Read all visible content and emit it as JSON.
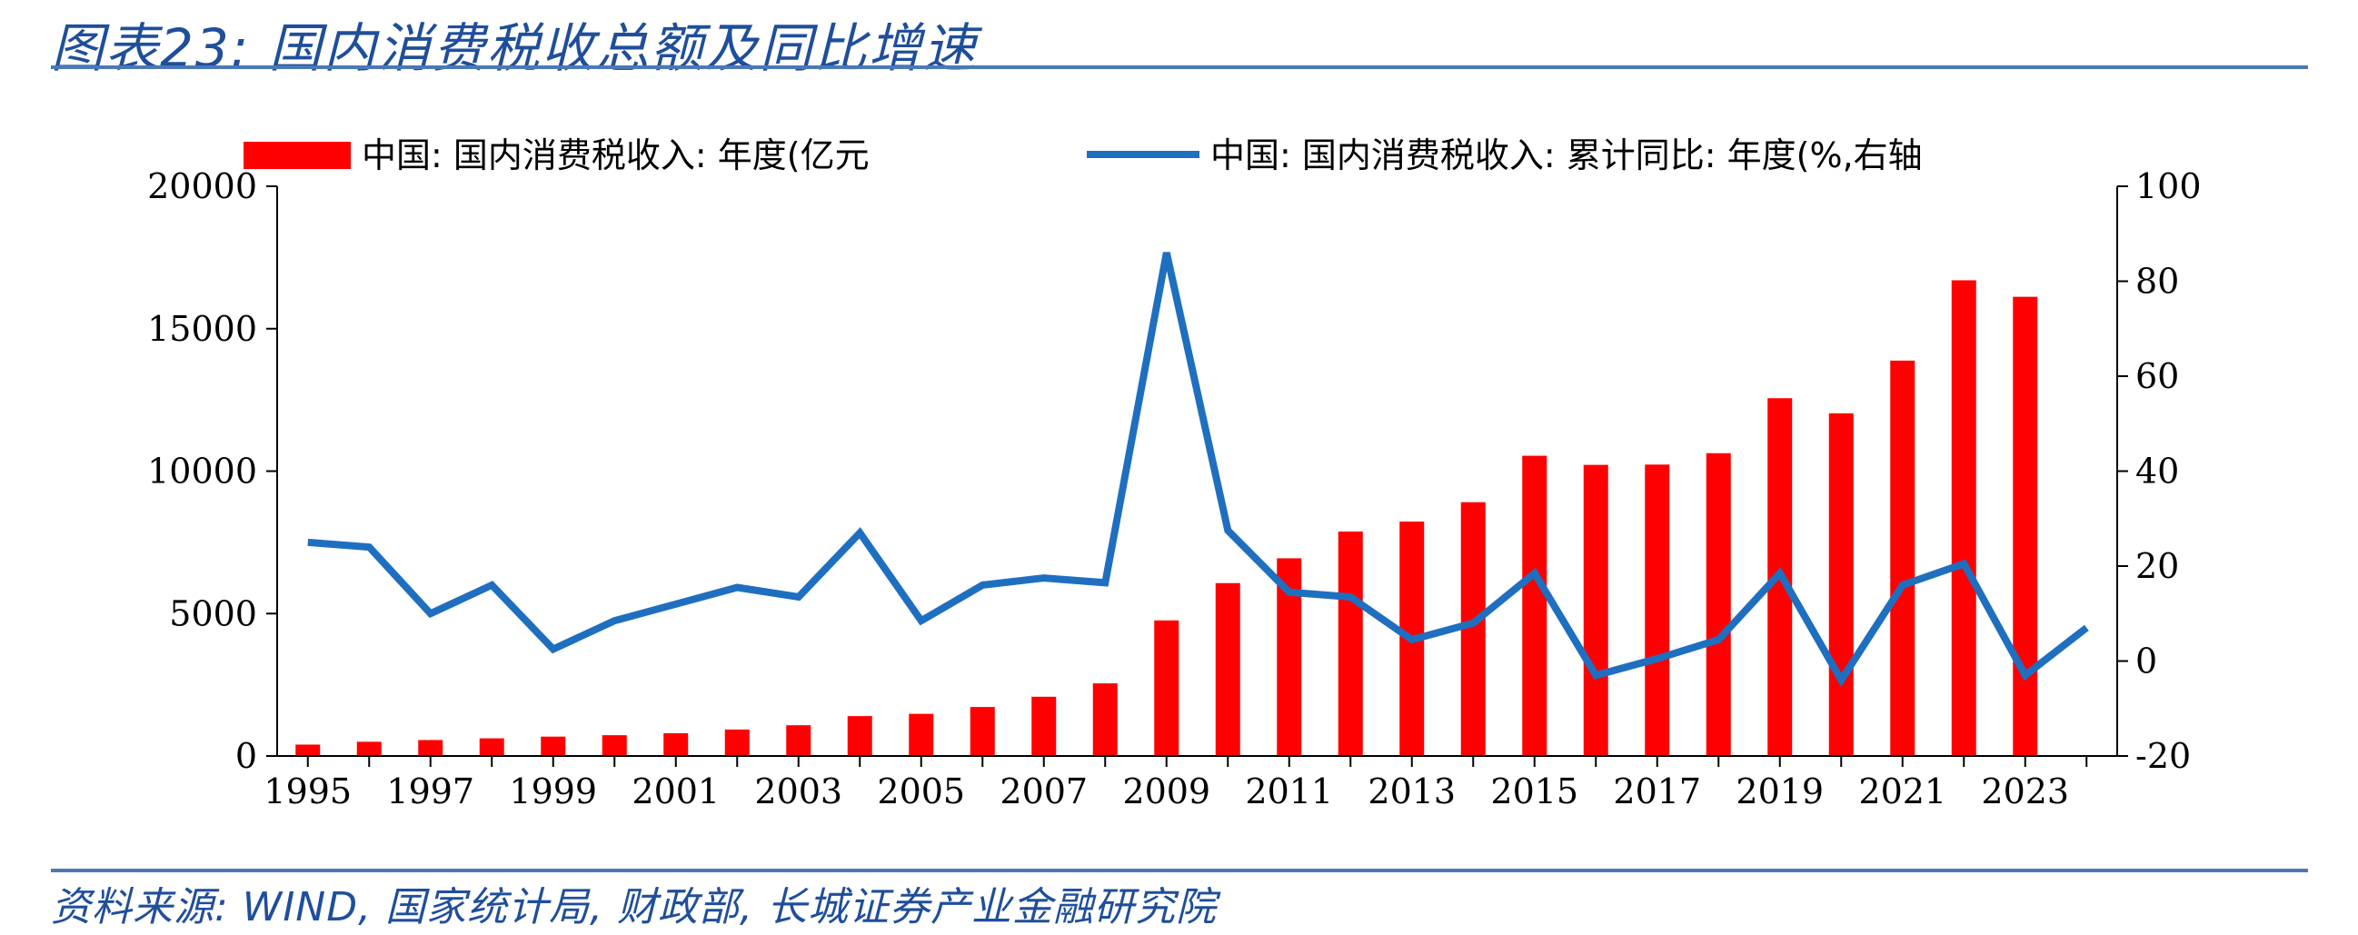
{
  "figure_title": "图表23:  国内消费税收总额及同比增速",
  "source": "资料来源: WIND, 国家统计局, 财政部, 长城证券产业金融研究院",
  "chart_data": {
    "type": "bar",
    "x": [
      1995,
      1996,
      1997,
      1998,
      1999,
      2000,
      2001,
      2002,
      2003,
      2004,
      2005,
      2006,
      2007,
      2008,
      2009,
      2010,
      2011,
      2012,
      2013,
      2014,
      2015,
      2016,
      2017,
      2018,
      2019,
      2020,
      2021,
      2022,
      2023,
      2024
    ],
    "x_tick_labels": [
      "1995",
      "1997",
      "1999",
      "2001",
      "2003",
      "2005",
      "2007",
      "2009",
      "2011",
      "2013",
      "2015",
      "2017",
      "2019",
      "2021",
      "2023"
    ],
    "series": [
      {
        "name": "中国: 国内消费税收入: 年度(亿元",
        "type": "bar",
        "axis": "left",
        "color": "#ff0000",
        "values": [
          400,
          500,
          560,
          620,
          680,
          730,
          800,
          930,
          1080,
          1400,
          1480,
          1720,
          2080,
          2550,
          4760,
          6070,
          6940,
          7880,
          8230,
          8910,
          10540,
          10220,
          10230,
          10630,
          12560,
          12030,
          13880,
          16700,
          16120,
          null
        ]
      },
      {
        "name": "中国: 国内消费税收入: 累计同比: 年度(%,右轴",
        "type": "line",
        "axis": "right",
        "color": "#1f6fc0",
        "values": [
          25,
          24,
          10,
          16,
          2.5,
          8.5,
          12,
          15.5,
          13.5,
          27,
          8.5,
          16,
          17.5,
          16.5,
          86,
          27.5,
          14.5,
          13.5,
          4.5,
          8,
          18.5,
          -3,
          0.5,
          4.5,
          18.5,
          -4,
          16,
          20.5,
          -3,
          7
        ]
      }
    ],
    "y_left": {
      "lim": [
        0,
        20000
      ],
      "ticks": [
        0,
        5000,
        10000,
        15000,
        20000
      ]
    },
    "y_right": {
      "lim": [
        -20,
        100
      ],
      "ticks": [
        -20,
        0,
        20,
        40,
        60,
        80,
        100
      ]
    },
    "legend_position": "top"
  }
}
